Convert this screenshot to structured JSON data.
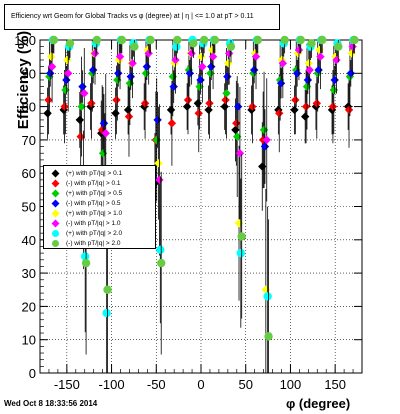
{
  "title": "Efficiency wrt Geom for Global Tracks vs φ (degree) at | η | <= 1.0 at pT > 0.11",
  "ylabel": "Efficiency (%)",
  "xlabel": "φ (degree)",
  "timestamp": "Wed Oct  8 18:33:56 2014",
  "legend": [
    {
      "label": "(+) with pT/|q| > 0.1",
      "color": "#000000",
      "shape": "diamond"
    },
    {
      "label": "(-) with pT/|q| > 0.1",
      "color": "#ff0000",
      "shape": "diamond"
    },
    {
      "label": "(+) with pT/|q| > 0.5",
      "color": "#00cc00",
      "shape": "diamond"
    },
    {
      "label": "(-) with pT/|q| > 0.5",
      "color": "#0000ff",
      "shape": "diamond"
    },
    {
      "label": "(+) with pT/|q| > 1.0",
      "color": "#ffff00",
      "shape": "diamond"
    },
    {
      "label": "(-) with pT/|q| > 1.0",
      "color": "#ff00ff",
      "shape": "diamond"
    },
    {
      "label": "(+) with pT/|q| > 2.0",
      "color": "#00ffff",
      "shape": "circle"
    },
    {
      "label": "(-) with pT/|q| > 2.0",
      "color": "#66cc44",
      "shape": "circle"
    }
  ],
  "chart_data": {
    "type": "scatter",
    "xlim": [
      -180,
      180
    ],
    "ylim": [
      0,
      100
    ],
    "xticks": [
      -150,
      -100,
      -50,
      0,
      50,
      100,
      150
    ],
    "yticks": [
      0,
      10,
      20,
      30,
      40,
      50,
      60,
      70,
      80,
      90,
      100
    ],
    "grid": true,
    "legend_position": "middle-left",
    "series": [
      {
        "name": "(+) with pT/|q| > 0.1",
        "color": "#000000",
        "shape": "diamond",
        "x": [
          -168,
          -150,
          -132,
          -120,
          -108,
          -92,
          -78,
          -60,
          -48,
          -30,
          -12,
          0,
          12,
          30,
          42,
          60,
          72,
          90,
          108,
          120,
          132,
          150,
          168
        ],
        "y": [
          78,
          79,
          76,
          80,
          72,
          78,
          79,
          80,
          57,
          79,
          80,
          81,
          79,
          80,
          73,
          79,
          62,
          79,
          79,
          77,
          80,
          79,
          80
        ]
      },
      {
        "name": "(-) with pT/|q| > 0.1",
        "color": "#ff0000",
        "shape": "diamond",
        "x": [
          -168,
          -150,
          -132,
          -120,
          -108,
          -92,
          -78,
          -60,
          -48,
          -30,
          -12,
          0,
          12,
          30,
          42,
          60,
          72,
          90,
          108,
          120,
          132,
          150,
          168
        ],
        "y": [
          82,
          80,
          71,
          81,
          73,
          82,
          77,
          81,
          70,
          75,
          82,
          78,
          81,
          82,
          75,
          80,
          70,
          78,
          82,
          80,
          81,
          80,
          79
        ]
      },
      {
        "name": "(+) with pT/|q| > 0.5",
        "color": "#00cc00",
        "shape": "diamond",
        "x": [
          -168,
          -150,
          -132,
          -120,
          -108,
          -92,
          -78,
          -60,
          -48,
          -30,
          -12,
          0,
          12,
          30,
          42,
          60,
          72,
          90,
          108,
          120,
          132,
          150,
          168
        ],
        "y": [
          89,
          85,
          80,
          90,
          66,
          88,
          87,
          90,
          70,
          89,
          91,
          86,
          90,
          84,
          71,
          90,
          73,
          88,
          91,
          86,
          90,
          85,
          89
        ]
      },
      {
        "name": "(-) with pT/|q| > 0.5",
        "color": "#0000ff",
        "shape": "diamond",
        "x": [
          -168,
          -150,
          -132,
          -120,
          -108,
          -92,
          -78,
          -60,
          -48,
          -30,
          -12,
          0,
          12,
          30,
          42,
          60,
          72,
          90,
          108,
          120,
          132,
          150,
          168
        ],
        "y": [
          90,
          88,
          86,
          91,
          75,
          90,
          89,
          92,
          76,
          86,
          90,
          88,
          92,
          89,
          80,
          91,
          68,
          87,
          90,
          88,
          91,
          88,
          90
        ]
      },
      {
        "name": "(+) with pT/|q| > 1.0",
        "color": "#ffff00",
        "shape": "diamond",
        "x": [
          -168,
          -150,
          -132,
          -120,
          -108,
          -92,
          -78,
          -60,
          -48,
          -30,
          -12,
          0,
          12,
          30,
          42,
          60,
          72,
          90,
          108,
          120,
          132,
          150,
          168
        ],
        "y": [
          95,
          94,
          52,
          96,
          60,
          94,
          93,
          97,
          63,
          93,
          96,
          95,
          97,
          93,
          45,
          96,
          25,
          94,
          96,
          93,
          97,
          95,
          96
        ]
      },
      {
        "name": "(-) with pT/|q| > 1.0",
        "color": "#ff00ff",
        "shape": "diamond",
        "x": [
          -168,
          -150,
          -132,
          -120,
          -108,
          -92,
          -78,
          -60,
          -48,
          -30,
          -12,
          0,
          12,
          30,
          42,
          60,
          72,
          90,
          108,
          120,
          132,
          150,
          168
        ],
        "y": [
          92,
          90,
          84,
          96,
          72,
          95,
          93,
          96,
          58,
          94,
          96,
          92,
          95,
          96,
          66,
          95,
          70,
          93,
          97,
          91,
          95,
          94,
          98
        ]
      },
      {
        "name": "(+) with pT/|q| > 2.0",
        "color": "#00ffff",
        "shape": "circle",
        "x": [
          -168,
          -150,
          -132,
          -120,
          -108,
          -92,
          -78,
          -60,
          -48,
          -30,
          -12,
          0,
          12,
          30,
          42,
          60,
          72,
          90,
          108,
          120,
          132,
          150,
          168
        ],
        "y": [
          100,
          98,
          35,
          99,
          18,
          100,
          99,
          100,
          37,
          98,
          100,
          99,
          100,
          99,
          36,
          100,
          23,
          99,
          100,
          98,
          100,
          99,
          100
        ]
      },
      {
        "name": "(-) with pT/|q| > 2.0",
        "color": "#66cc44",
        "shape": "circle",
        "x": [
          -168,
          -150,
          -132,
          -120,
          -108,
          -92,
          -78,
          -60,
          -48,
          -30,
          -12,
          0,
          12,
          30,
          42,
          60,
          72,
          90,
          108,
          120,
          132,
          150,
          168
        ],
        "y": [
          100,
          99,
          33,
          100,
          25,
          100,
          98,
          100,
          33,
          100,
          99,
          100,
          100,
          98,
          41,
          100,
          11,
          100,
          100,
          99,
          100,
          98,
          100
        ]
      }
    ]
  }
}
